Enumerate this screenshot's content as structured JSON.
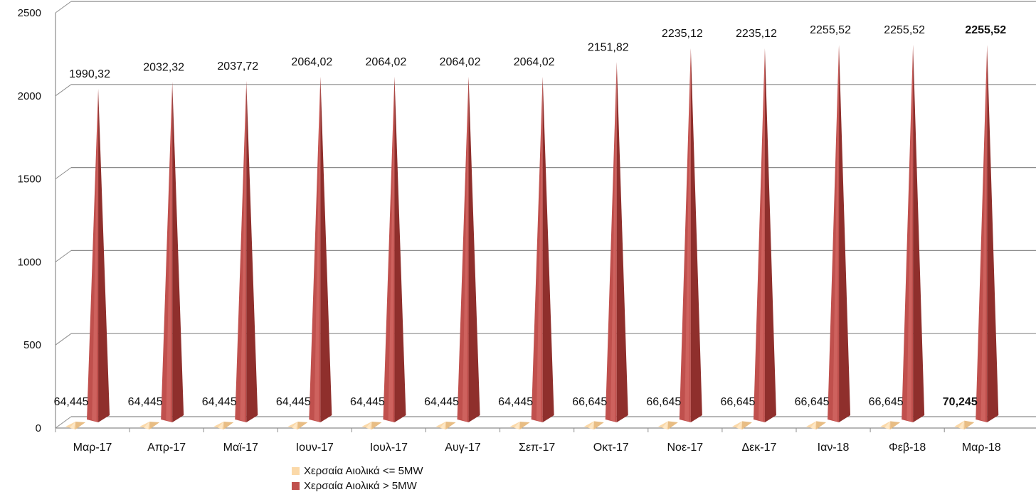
{
  "chart_data": {
    "type": "bar",
    "title": "",
    "xlabel": "",
    "ylabel": "",
    "ylim": [
      0,
      2500
    ],
    "yticks": [
      "0",
      "500",
      "1000",
      "1500",
      "2000",
      "2500"
    ],
    "grid": true,
    "legend_position": "bottom",
    "categories": [
      "Μαρ-17",
      "Απρ-17",
      "Μαϊ-17",
      "Ιουν-17",
      "Ιουλ-17",
      "Αυγ-17",
      "Σεπ-17",
      "Οκτ-17",
      "Νοε-17",
      "Δεκ-17",
      "Ιαν-18",
      "Φεβ-18",
      "Μαρ-18"
    ],
    "series": [
      {
        "name": "Χερσαία Αιολικά <= 5MW",
        "color": "#fbd9a9",
        "values": [
          64.445,
          64.445,
          64.445,
          64.445,
          64.445,
          64.445,
          64.445,
          66.645,
          66.645,
          66.645,
          66.645,
          66.645,
          70.245
        ],
        "labels": [
          "64,445",
          "64,445",
          "64,445",
          "64,445",
          "64,445",
          "64,445",
          "64,445",
          "66,645",
          "66,645",
          "66,645",
          "66,645",
          "66,645",
          "70,245"
        ]
      },
      {
        "name": "Χερσαία Αιολικά > 5MW",
        "color": "#c0504d",
        "values": [
          1990.32,
          2032.32,
          2037.72,
          2064.02,
          2064.02,
          2064.02,
          2064.02,
          2151.82,
          2235.12,
          2235.12,
          2255.52,
          2255.52,
          2255.52
        ],
        "labels": [
          "1990,32",
          "2032,32",
          "2037,72",
          "2064,02",
          "2064,02",
          "2064,02",
          "2064,02",
          "2151,82",
          "2235,12",
          "2235,12",
          "2255,52",
          "2255,52",
          "2255,52"
        ]
      }
    ]
  }
}
